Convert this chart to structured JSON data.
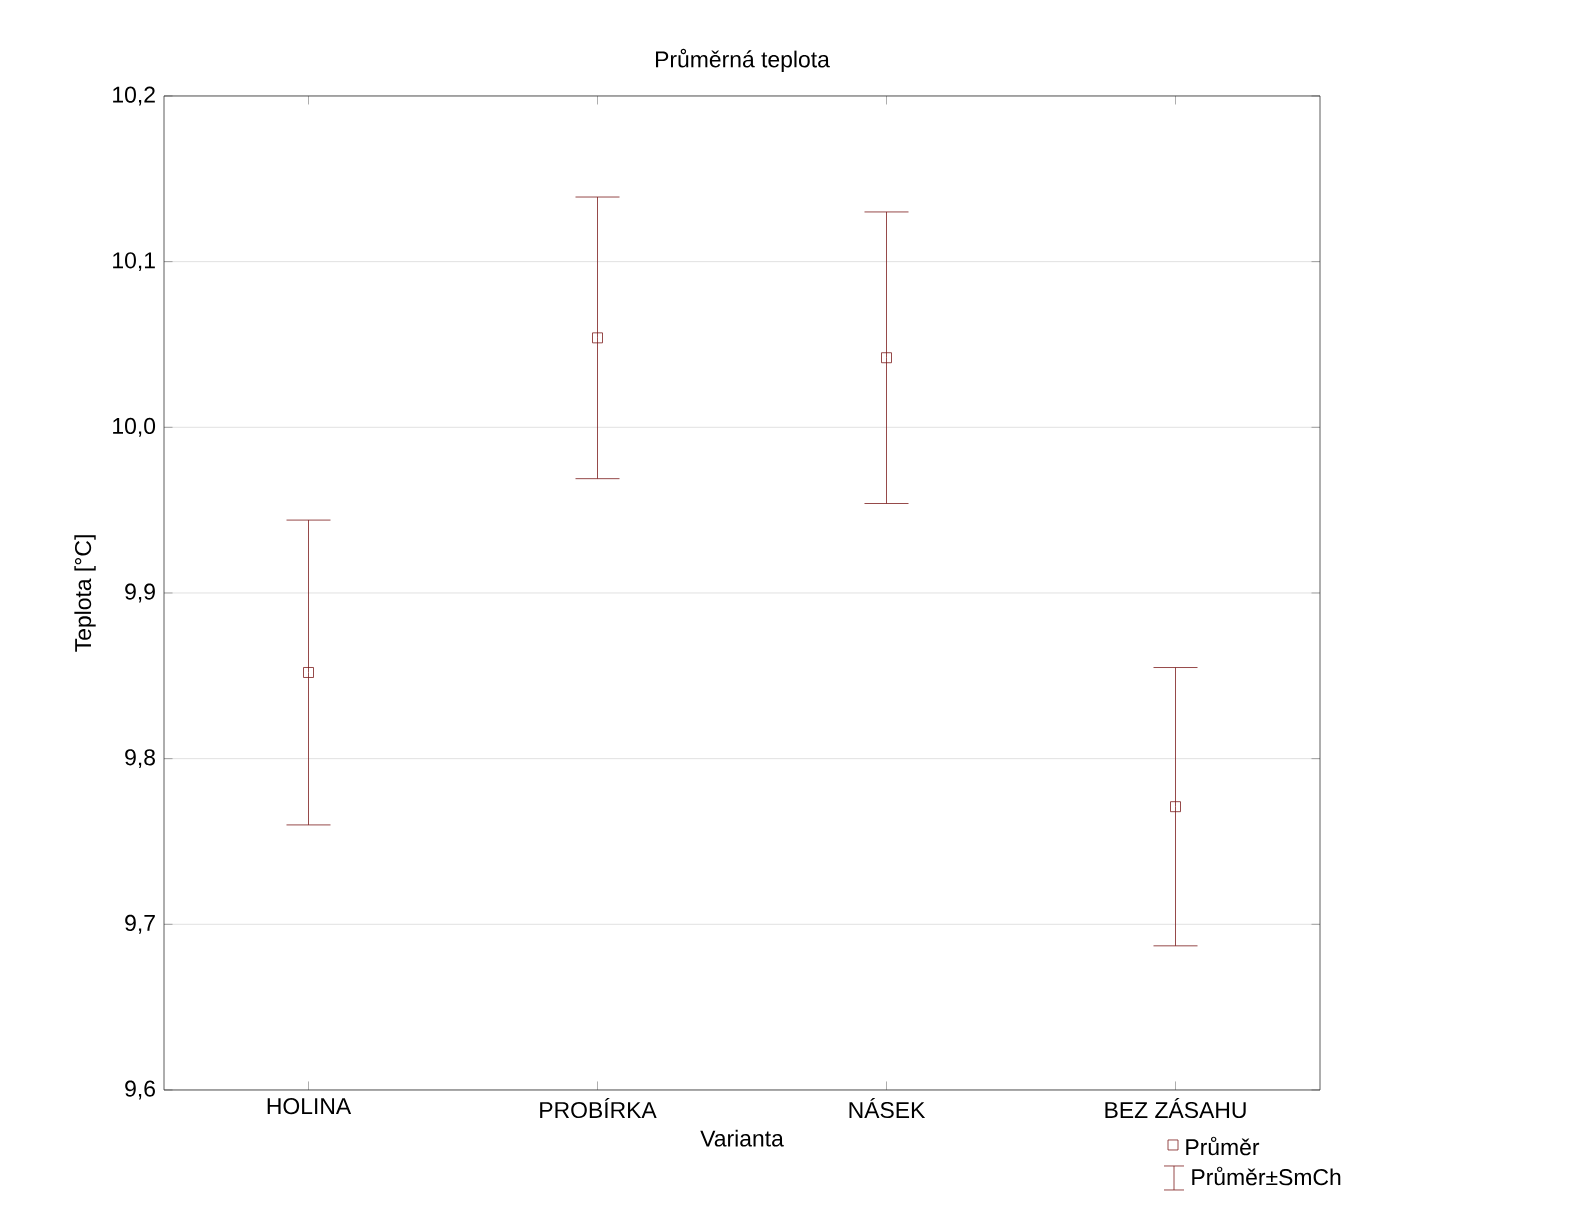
{
  "chart_data": {
    "type": "scatter",
    "title": "Průměrná teplota",
    "xlabel": "Varianta",
    "ylabel": "Teplota [°C]",
    "categories": [
      "HOLINA",
      "PROBÍRKA",
      "NÁSEK",
      "BEZ ZÁSAHU"
    ],
    "series": [
      {
        "name": "Průměr",
        "color": "#7b1c1c",
        "values": [
          9.852,
          10.054,
          10.042,
          9.771
        ],
        "errors": [
          0.092,
          0.085,
          0.088,
          0.084
        ]
      }
    ],
    "ylim": [
      9.6,
      10.2
    ],
    "yticks": [
      {
        "value": 9.6,
        "label": "9,6"
      },
      {
        "value": 9.7,
        "label": "9,7"
      },
      {
        "value": 9.8,
        "label": "9,8"
      },
      {
        "value": 9.9,
        "label": "9,9"
      },
      {
        "value": 10.0,
        "label": "10,0"
      },
      {
        "value": 10.1,
        "label": "10,1"
      },
      {
        "value": 10.2,
        "label": "10,2"
      }
    ],
    "grid": "y",
    "marker": "square",
    "legend": "bottom right",
    "annotations": [
      "Průměr±SmCh"
    ]
  }
}
